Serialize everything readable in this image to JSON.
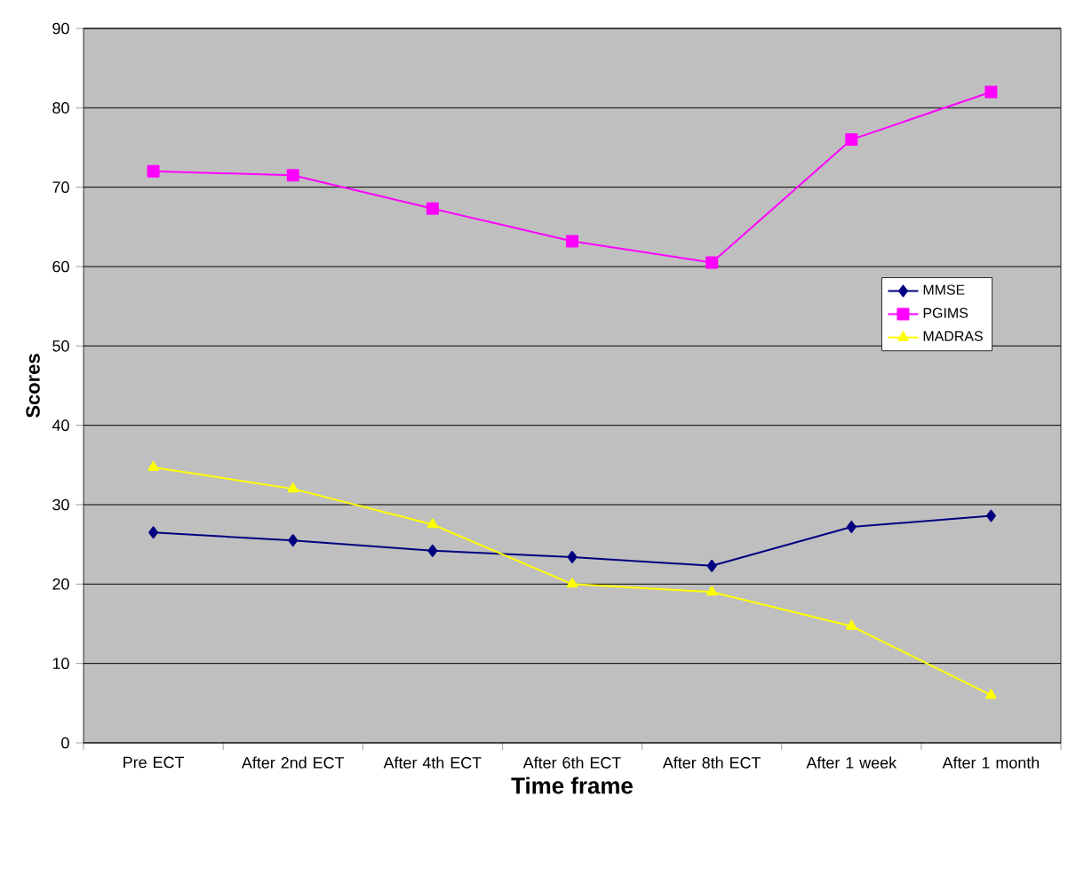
{
  "chart_data": {
    "type": "line",
    "xlabel": "Time frame",
    "ylabel": "Scores",
    "categories": [
      "Pre ECT",
      "After 2nd ECT",
      "After 4th ECT",
      "After 6th ECT",
      "After 8th ECT",
      "After 1 week",
      "After 1 month"
    ],
    "series": [
      {
        "name": "MMSE",
        "color": "#000080",
        "marker": "diamond",
        "values": [
          26.5,
          25.5,
          24.2,
          23.4,
          22.3,
          27.2,
          28.6
        ]
      },
      {
        "name": "PGIMS",
        "color": "#ff00ff",
        "marker": "square",
        "values": [
          72,
          71.5,
          67.3,
          63.2,
          60.5,
          76,
          82
        ]
      },
      {
        "name": "MADRAS",
        "color": "#ffff00",
        "marker": "triangle",
        "values": [
          34.7,
          32,
          27.5,
          20,
          19,
          14.7,
          6
        ]
      }
    ],
    "ylim": [
      0,
      90
    ],
    "yticks": [
      0,
      10,
      20,
      30,
      40,
      50,
      60,
      70,
      80,
      90
    ],
    "grid": "y",
    "legend": "right"
  }
}
